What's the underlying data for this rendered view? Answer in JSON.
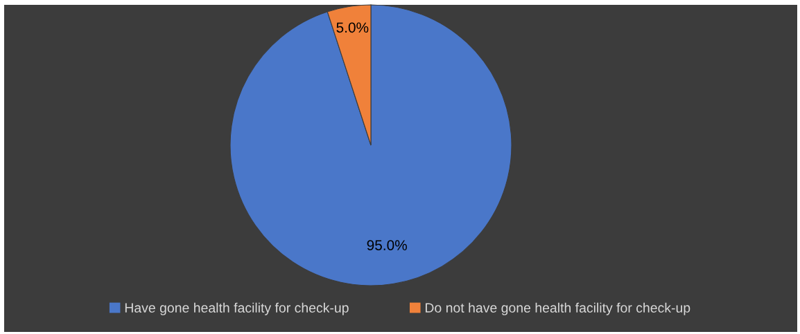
{
  "chart_data": {
    "type": "pie",
    "categories": [
      "Have gone health facility for check-up",
      "Do not have gone health facility for check-up"
    ],
    "values": [
      95.0,
      5.0
    ],
    "colors": [
      "#4a77c9",
      "#f0813a"
    ],
    "value_labels": [
      "95.0%",
      "5.0%"
    ],
    "legend": "bottom"
  }
}
